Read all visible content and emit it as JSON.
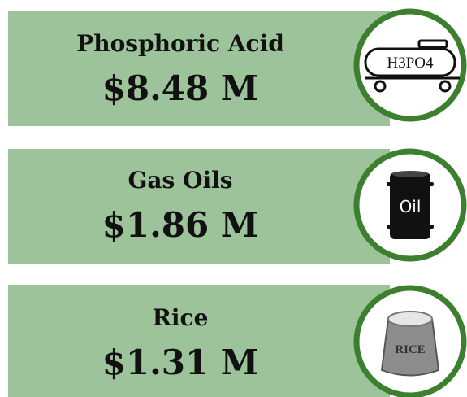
{
  "items": [
    {
      "name": "Phosphoric Acid",
      "value": "$8.48 M",
      "icon_label": "H3PO4"
    },
    {
      "name": "Gas Oils",
      "value": "$1.86 M",
      "icon_label": "Oil"
    },
    {
      "name": "Rice",
      "value": "$1.31 M",
      "icon_label": "RICE"
    }
  ]
}
